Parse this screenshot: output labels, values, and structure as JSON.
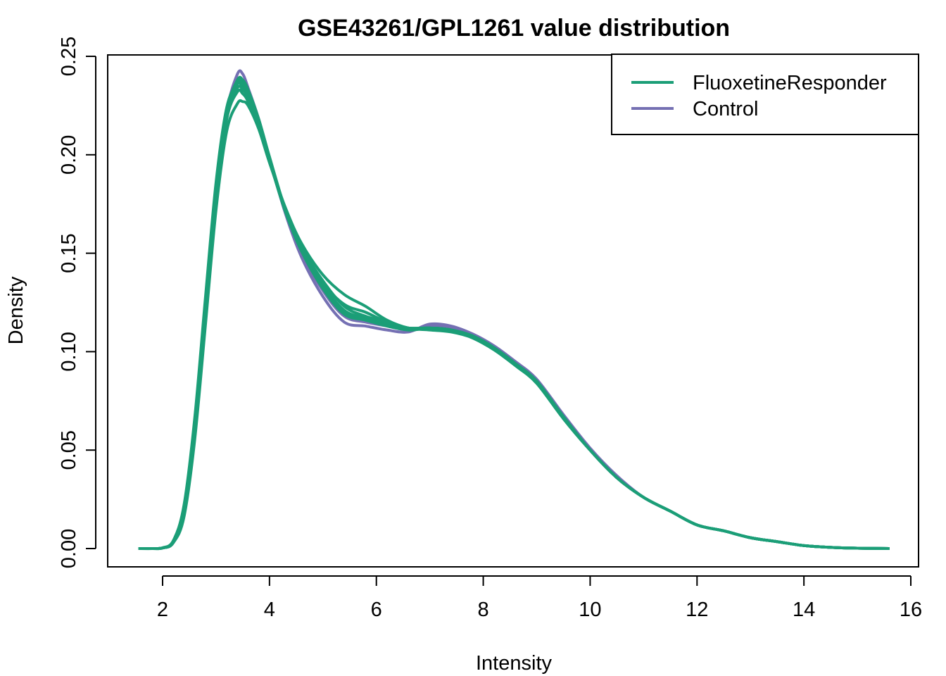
{
  "chart_data": {
    "type": "line",
    "title": "GSE43261/GPL1261 value distribution",
    "xlabel": "Intensity",
    "ylabel": "Density",
    "xlim": [
      1.55,
      15.6
    ],
    "ylim": [
      0,
      0.25
    ],
    "x_ticks": [
      2,
      4,
      6,
      8,
      10,
      12,
      14,
      16
    ],
    "x_tick_labels": [
      "2",
      "4",
      "6",
      "8",
      "10",
      "12",
      "14",
      "16"
    ],
    "y_ticks": [
      0,
      0.05,
      0.1,
      0.15,
      0.2,
      0.25
    ],
    "y_tick_labels": [
      "0.00",
      "0.05",
      "0.10",
      "0.15",
      "0.20",
      "0.25"
    ],
    "grid": false,
    "legend_position": "top-right",
    "legend": [
      {
        "label": "FluoxetineResponder",
        "color": "#1b9e77"
      },
      {
        "label": "Control",
        "color": "#7570b3"
      }
    ],
    "x": [
      1.55,
      1.8,
      2.0,
      2.2,
      2.4,
      2.6,
      2.8,
      3.0,
      3.2,
      3.4,
      3.5,
      3.6,
      3.8,
      4.0,
      4.3,
      4.6,
      5.0,
      5.4,
      5.8,
      6.2,
      6.6,
      7.0,
      7.4,
      7.8,
      8.2,
      8.6,
      9.0,
      9.5,
      10.0,
      10.5,
      11.0,
      11.5,
      12.0,
      12.5,
      13.0,
      13.5,
      14.0,
      14.5,
      15.0,
      15.6
    ],
    "series": [
      {
        "group": "Control",
        "values": [
          0,
          0,
          0.0003,
          0.003,
          0.018,
          0.06,
          0.12,
          0.18,
          0.222,
          0.241,
          0.241,
          0.234,
          0.218,
          0.198,
          0.17,
          0.148,
          0.128,
          0.115,
          0.113,
          0.111,
          0.11,
          0.114,
          0.113,
          0.109,
          0.103,
          0.095,
          0.086,
          0.068,
          0.051,
          0.037,
          0.026,
          0.019,
          0.012,
          0.009,
          0.0055,
          0.0035,
          0.0015,
          0.0006,
          0.0002,
          0
        ]
      },
      {
        "group": "Control",
        "values": [
          0,
          0,
          0.0003,
          0.003,
          0.017,
          0.058,
          0.117,
          0.177,
          0.219,
          0.236,
          0.237,
          0.232,
          0.217,
          0.198,
          0.171,
          0.15,
          0.131,
          0.118,
          0.115,
          0.113,
          0.111,
          0.113,
          0.112,
          0.108,
          0.102,
          0.094,
          0.085,
          0.067,
          0.05,
          0.036,
          0.026,
          0.019,
          0.012,
          0.009,
          0.0055,
          0.0035,
          0.0015,
          0.0006,
          0.0002,
          0
        ]
      },
      {
        "group": "FluoxetineResponder",
        "values": [
          0,
          0,
          0.0003,
          0.0035,
          0.02,
          0.063,
          0.124,
          0.183,
          0.222,
          0.238,
          0.238,
          0.233,
          0.218,
          0.199,
          0.172,
          0.152,
          0.133,
          0.12,
          0.116,
          0.114,
          0.111,
          0.112,
          0.111,
          0.108,
          0.102,
          0.093,
          0.084,
          0.066,
          0.05,
          0.036,
          0.026,
          0.019,
          0.012,
          0.009,
          0.0055,
          0.0035,
          0.0015,
          0.0006,
          0.0002,
          0
        ]
      },
      {
        "group": "FluoxetineResponder",
        "values": [
          0,
          0,
          0.0004,
          0.004,
          0.022,
          0.066,
          0.127,
          0.186,
          0.224,
          0.236,
          0.234,
          0.229,
          0.215,
          0.197,
          0.171,
          0.152,
          0.134,
          0.121,
          0.117,
          0.114,
          0.112,
          0.112,
          0.111,
          0.107,
          0.101,
          0.093,
          0.084,
          0.066,
          0.05,
          0.036,
          0.026,
          0.019,
          0.012,
          0.009,
          0.0055,
          0.0035,
          0.0015,
          0.0006,
          0.0002,
          0
        ]
      },
      {
        "group": "FluoxetineResponder",
        "values": [
          0,
          0,
          0.0003,
          0.0032,
          0.019,
          0.061,
          0.121,
          0.181,
          0.222,
          0.237,
          0.236,
          0.231,
          0.216,
          0.197,
          0.171,
          0.151,
          0.132,
          0.119,
          0.116,
          0.113,
          0.111,
          0.112,
          0.111,
          0.108,
          0.102,
          0.094,
          0.085,
          0.067,
          0.05,
          0.036,
          0.026,
          0.019,
          0.012,
          0.009,
          0.0055,
          0.0035,
          0.0015,
          0.0006,
          0.0002,
          0
        ]
      },
      {
        "group": "FluoxetineResponder",
        "values": [
          0,
          0,
          0.0003,
          0.003,
          0.017,
          0.057,
          0.116,
          0.176,
          0.218,
          0.232,
          0.231,
          0.227,
          0.214,
          0.197,
          0.172,
          0.153,
          0.136,
          0.123,
          0.118,
          0.115,
          0.112,
          0.112,
          0.111,
          0.107,
          0.101,
          0.093,
          0.084,
          0.066,
          0.05,
          0.036,
          0.026,
          0.019,
          0.012,
          0.009,
          0.0055,
          0.0035,
          0.0015,
          0.0006,
          0.0002,
          0
        ]
      },
      {
        "group": "FluoxetineResponder",
        "values": [
          0,
          0,
          0.0003,
          0.003,
          0.016,
          0.055,
          0.113,
          0.172,
          0.212,
          0.226,
          0.227,
          0.225,
          0.213,
          0.196,
          0.173,
          0.155,
          0.139,
          0.129,
          0.123,
          0.116,
          0.112,
          0.111,
          0.11,
          0.107,
          0.101,
          0.093,
          0.084,
          0.066,
          0.05,
          0.036,
          0.026,
          0.019,
          0.012,
          0.009,
          0.0055,
          0.0035,
          0.0015,
          0.0006,
          0.0002,
          0
        ]
      },
      {
        "group": "FluoxetineResponder",
        "values": [
          0,
          0,
          0.0003,
          0.0033,
          0.019,
          0.06,
          0.12,
          0.18,
          0.22,
          0.234,
          0.233,
          0.229,
          0.215,
          0.197,
          0.172,
          0.153,
          0.135,
          0.124,
          0.12,
          0.115,
          0.112,
          0.112,
          0.111,
          0.107,
          0.102,
          0.094,
          0.085,
          0.067,
          0.05,
          0.036,
          0.026,
          0.019,
          0.012,
          0.009,
          0.0055,
          0.0035,
          0.0015,
          0.0006,
          0.0002,
          0
        ]
      }
    ]
  }
}
